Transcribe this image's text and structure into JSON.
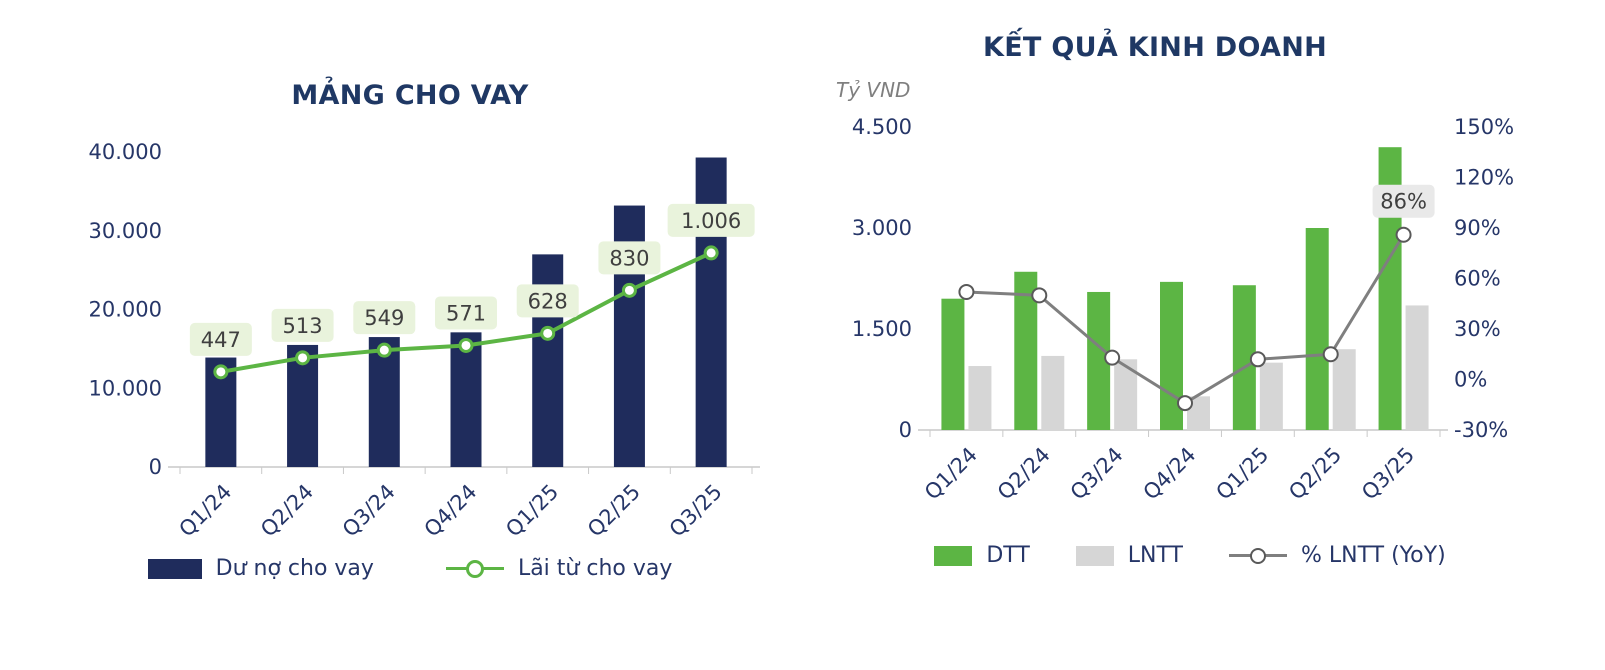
{
  "colors": {
    "navy": "#1F2C5C",
    "green": "#5CB544",
    "gray": "#D6D6D6",
    "line_gray": "#7F7F7F",
    "marker_stroke": "#595959",
    "green_label_bg": "#E9F3DC",
    "gray_label_bg": "#E9E9E9",
    "label_text": "#3F3F3F",
    "axis_text": "#263668",
    "title_text": "#1F3864",
    "unit_text": "#7F7F7F",
    "axis_line": "#C9C9C9",
    "background": "#FFFFFF"
  },
  "chart_data": [
    {
      "type": "bar+line",
      "title": "MẢNG CHO VAY",
      "categories": [
        "Q1/24",
        "Q2/24",
        "Q3/24",
        "Q4/24",
        "Q1/25",
        "Q2/25",
        "Q3/25"
      ],
      "series": [
        {
          "name": "Dư nợ cho vay",
          "type": "bar",
          "color_key": "navy",
          "values": [
            13900,
            15500,
            16500,
            17100,
            27000,
            33200,
            39300
          ]
        },
        {
          "name": "Lãi từ cho vay",
          "type": "line",
          "color_key": "green",
          "secondary_axis": true,
          "values": [
            447,
            513,
            549,
            571,
            628,
            830,
            1006
          ],
          "data_labels": [
            "447",
            "513",
            "549",
            "571",
            "628",
            "830",
            "1.006"
          ]
        }
      ],
      "y_left": {
        "min": 0,
        "max": 40000,
        "tick_labels": [
          "0",
          "10.000",
          "20.000",
          "30.000",
          "40.000"
        ]
      },
      "y_right_hidden": {
        "min": 0,
        "max": 1480
      },
      "grid": "off",
      "legend_position": "bottom"
    },
    {
      "type": "bar+line",
      "title": "KẾT QUẢ KINH DOANH",
      "unit_label": "Tỷ VND",
      "categories": [
        "Q1/24",
        "Q2/24",
        "Q3/24",
        "Q4/24",
        "Q1/25",
        "Q2/25",
        "Q3/25"
      ],
      "series": [
        {
          "name": "DTT",
          "type": "bar",
          "color_key": "green",
          "values": [
            1950,
            2350,
            2050,
            2200,
            2150,
            3000,
            4200
          ]
        },
        {
          "name": "LNTT",
          "type": "bar",
          "color_key": "gray",
          "values": [
            950,
            1100,
            1050,
            500,
            1000,
            1200,
            1850
          ]
        },
        {
          "name": "% LNTT (YoY)",
          "type": "line",
          "color_key": "line_gray",
          "secondary_axis": true,
          "values": [
            52,
            50,
            13,
            -14,
            12,
            15,
            86
          ],
          "data_labels": [
            null,
            null,
            null,
            null,
            null,
            null,
            "86%"
          ]
        }
      ],
      "y_left": {
        "min": 0,
        "max": 4500,
        "tick_labels": [
          "0",
          "1.500",
          "3.000",
          "4.500"
        ]
      },
      "y_right": {
        "min": -30,
        "max": 150,
        "tick_labels": [
          "-30%",
          "0%",
          "30%",
          "60%",
          "90%",
          "120%",
          "150%"
        ]
      },
      "grid": "off",
      "legend_position": "bottom"
    }
  ]
}
